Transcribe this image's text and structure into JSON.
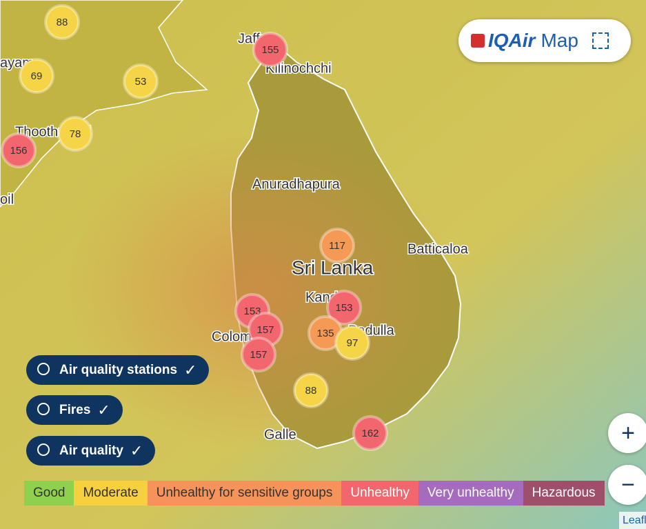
{
  "brand": {
    "logo": "IQAir",
    "title": "Map"
  },
  "places": [
    "Jaffna",
    "Kilinochchi",
    "ayam",
    "Thoothukudi",
    "oil",
    "Anuradhapura",
    "Batticaloa",
    "Sri Lanka",
    "Kandy",
    "Badulla",
    "Colombo",
    "Galle"
  ],
  "stations": [
    {
      "value": 88,
      "color": "#f5d547"
    },
    {
      "value": 69,
      "color": "#f5d547"
    },
    {
      "value": 53,
      "color": "#f5d547"
    },
    {
      "value": 78,
      "color": "#f5d547"
    },
    {
      "value": 156,
      "color": "#f2666e"
    },
    {
      "value": 155,
      "color": "#f2666e"
    },
    {
      "value": 117,
      "color": "#f59a55"
    },
    {
      "value": 153,
      "color": "#f2666e"
    },
    {
      "value": 153,
      "color": "#f2666e"
    },
    {
      "value": 157,
      "color": "#f2666e"
    },
    {
      "value": 135,
      "color": "#f59a55"
    },
    {
      "value": 97,
      "color": "#f5d547"
    },
    {
      "value": 157,
      "color": "#f2666e"
    },
    {
      "value": 88,
      "color": "#f5d547"
    },
    {
      "value": 162,
      "color": "#f2666e"
    }
  ],
  "toggles": [
    "Air quality stations",
    "Fires",
    "Air quality"
  ],
  "legend": [
    {
      "label": "Good",
      "color": "#8fd14f"
    },
    {
      "label": "Moderate",
      "color": "#f7d040"
    },
    {
      "label": "Unhealthy for sensitive groups",
      "color": "#f5935a"
    },
    {
      "label": "Unhealthy",
      "color": "#f2666e"
    },
    {
      "label": "Very unhealthy",
      "color": "#a56bbd"
    },
    {
      "label": "Hazardous",
      "color": "#9e4f6a"
    }
  ],
  "attribution": "Leaflet"
}
